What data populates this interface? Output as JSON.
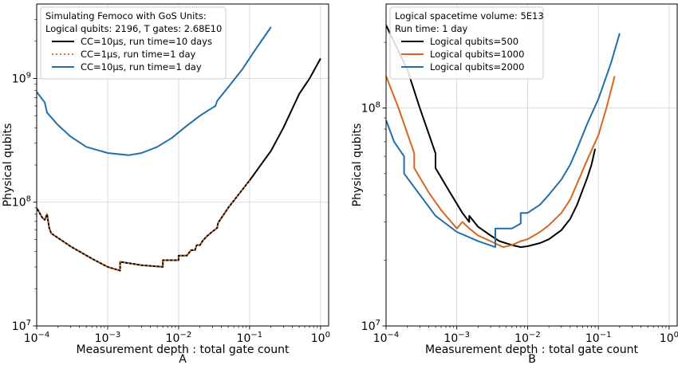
{
  "chart_data": [
    {
      "panel": "A",
      "type": "line",
      "xlabel": "Measurement depth : total gate count",
      "ylabel": "Physical qubits",
      "xscale": "log",
      "yscale": "log",
      "xlim": [
        0.0001,
        1.3
      ],
      "ylim": [
        10000000,
        4000000000
      ],
      "xticks": [
        {
          "value": 0.0001,
          "base": "10",
          "exp": "−4"
        },
        {
          "value": 0.001,
          "base": "10",
          "exp": "−3"
        },
        {
          "value": 0.01,
          "base": "10",
          "exp": "−2"
        },
        {
          "value": 0.1,
          "base": "10",
          "exp": "−1"
        },
        {
          "value": 1,
          "base": "10",
          "exp": "0"
        }
      ],
      "yticks": [
        {
          "value": 10000000,
          "base": "10",
          "exp": "7"
        },
        {
          "value": 100000000,
          "base": "10",
          "exp": "8"
        },
        {
          "value": 1000000000,
          "base": "10",
          "exp": "9"
        }
      ],
      "grid": true,
      "legend_placement": "top-left",
      "legend_header": [
        "Simulating Femoco with GoS Units:",
        "Logical qubits: 2196, T gates: 2.68E10"
      ],
      "series": [
        {
          "name": "CC=10μs, run time=10 days",
          "color": "#000000",
          "dash": "solid",
          "x": [
            0.0001,
            0.00012,
            0.00013,
            0.00014,
            0.00015,
            0.00016,
            0.0003,
            0.0006,
            0.001,
            0.0015,
            0.0015,
            0.003,
            0.006,
            0.006,
            0.01,
            0.01,
            0.013,
            0.015,
            0.017,
            0.018,
            0.02,
            0.022,
            0.025,
            0.03,
            0.035,
            0.036,
            0.05,
            0.1,
            0.2,
            0.3,
            0.5,
            0.7,
            1.0
          ],
          "y": [
            90000000,
            75000000,
            72000000,
            80000000,
            62000000,
            56000000,
            44000000,
            35000000,
            30000000,
            28000000,
            33000000,
            31000000,
            30000000,
            34000000,
            34000000,
            37000000,
            37000000,
            41000000,
            41000000,
            45000000,
            45000000,
            49000000,
            53000000,
            58000000,
            62000000,
            68000000,
            90000000,
            150000000,
            260000000,
            400000000,
            750000000,
            1000000000,
            1450000000
          ]
        },
        {
          "name": "CC=1μs, run time=1 day",
          "color": "#d9651f",
          "dash": "dotted",
          "x": [
            0.0001,
            0.00012,
            0.00013,
            0.00014,
            0.00015,
            0.00016,
            0.0003,
            0.0006,
            0.001,
            0.0015,
            0.0015,
            0.003,
            0.006,
            0.006,
            0.01,
            0.01,
            0.013,
            0.015,
            0.017,
            0.018,
            0.02,
            0.022,
            0.025,
            0.03,
            0.035,
            0.036,
            0.05,
            0.1
          ],
          "y": [
            90000000,
            75000000,
            72000000,
            80000000,
            62000000,
            56000000,
            44000000,
            35000000,
            30000000,
            28000000,
            33000000,
            31000000,
            30000000,
            34000000,
            34000000,
            37000000,
            37000000,
            41000000,
            41000000,
            45000000,
            45000000,
            49000000,
            53000000,
            58000000,
            62000000,
            68000000,
            90000000,
            150000000
          ]
        },
        {
          "name": "CC=10μs, run time=1 day",
          "color": "#1f6fad",
          "dash": "solid",
          "x": [
            0.0001,
            0.00013,
            0.00014,
            0.0002,
            0.0003,
            0.0005,
            0.001,
            0.002,
            0.003,
            0.005,
            0.008,
            0.012,
            0.02,
            0.03,
            0.033,
            0.035,
            0.05,
            0.08,
            0.12,
            0.2
          ],
          "y": [
            780000000,
            640000000,
            530000000,
            420000000,
            340000000,
            280000000,
            250000000,
            240000000,
            250000000,
            280000000,
            330000000,
            400000000,
            500000000,
            580000000,
            600000000,
            660000000,
            850000000,
            1200000000,
            1700000000,
            2600000000
          ]
        }
      ]
    },
    {
      "panel": "B",
      "type": "line",
      "xlabel": "Measurement depth : total gate count",
      "ylabel": "Physical qubits",
      "xscale": "log",
      "yscale": "log",
      "xlim": [
        0.0001,
        1.3
      ],
      "ylim": [
        10000000,
        300000000
      ],
      "xticks": [
        {
          "value": 0.0001,
          "base": "10",
          "exp": "−4"
        },
        {
          "value": 0.001,
          "base": "10",
          "exp": "−3"
        },
        {
          "value": 0.01,
          "base": "10",
          "exp": "−2"
        },
        {
          "value": 0.1,
          "base": "10",
          "exp": "−1"
        },
        {
          "value": 1,
          "base": "10",
          "exp": "0"
        }
      ],
      "yticks": [
        {
          "value": 10000000,
          "base": "10",
          "exp": "7"
        },
        {
          "value": 100000000,
          "base": "10",
          "exp": "8"
        }
      ],
      "grid": true,
      "legend_placement": "top-left",
      "legend_header": [
        "Logical spacetime volume: 5E13",
        "Run time: 1 day"
      ],
      "series": [
        {
          "name": "Logical qubits=500",
          "color": "#000000",
          "dash": "solid",
          "x": [
            0.0001,
            0.0002,
            0.0003,
            0.0005,
            0.0005,
            0.0008,
            0.0012,
            0.0015,
            0.0015,
            0.002,
            0.003,
            0.004,
            0.006,
            0.008,
            0.01,
            0.015,
            0.02,
            0.03,
            0.04,
            0.05,
            0.07,
            0.08,
            0.09
          ],
          "y": [
            240000000,
            150000000,
            100000000,
            62000000,
            53000000,
            41000000,
            33000000,
            30000000,
            32000000,
            28500000,
            26000000,
            24500000,
            23500000,
            23000000,
            23200000,
            24000000,
            25000000,
            27500000,
            31000000,
            36000000,
            48000000,
            55000000,
            65000000
          ]
        },
        {
          "name": "Logical qubits=1000",
          "color": "#d9651f",
          "dash": "solid",
          "x": [
            0.0001,
            0.00015,
            0.00025,
            0.00025,
            0.0004,
            0.0006,
            0.001,
            0.0012,
            0.0015,
            0.002,
            0.003,
            0.0045,
            0.006,
            0.008,
            0.01,
            0.015,
            0.02,
            0.03,
            0.04,
            0.05,
            0.07,
            0.1,
            0.13,
            0.17
          ],
          "y": [
            140000000,
            100000000,
            62000000,
            53000000,
            41000000,
            34000000,
            28000000,
            30000000,
            28000000,
            26000000,
            24500000,
            23000000,
            23500000,
            24500000,
            25000000,
            27000000,
            29000000,
            33000000,
            38000000,
            45000000,
            58000000,
            75000000,
            100000000,
            140000000
          ]
        },
        {
          "name": "Logical qubits=2000",
          "color": "#1f6fad",
          "dash": "solid",
          "x": [
            0.0001,
            0.00013,
            0.00018,
            0.00018,
            0.0003,
            0.0005,
            0.001,
            0.002,
            0.0035,
            0.0035,
            0.006,
            0.008,
            0.008,
            0.01,
            0.015,
            0.02,
            0.03,
            0.04,
            0.05,
            0.07,
            0.1,
            0.15,
            0.2
          ],
          "y": [
            88000000,
            70000000,
            60000000,
            50000000,
            40000000,
            32000000,
            27000000,
            24500000,
            23000000,
            28000000,
            28000000,
            29500000,
            33000000,
            33000000,
            36000000,
            40000000,
            47000000,
            55000000,
            65000000,
            85000000,
            110000000,
            160000000,
            220000000
          ]
        }
      ]
    }
  ],
  "panel_labels": [
    "A",
    "B"
  ]
}
